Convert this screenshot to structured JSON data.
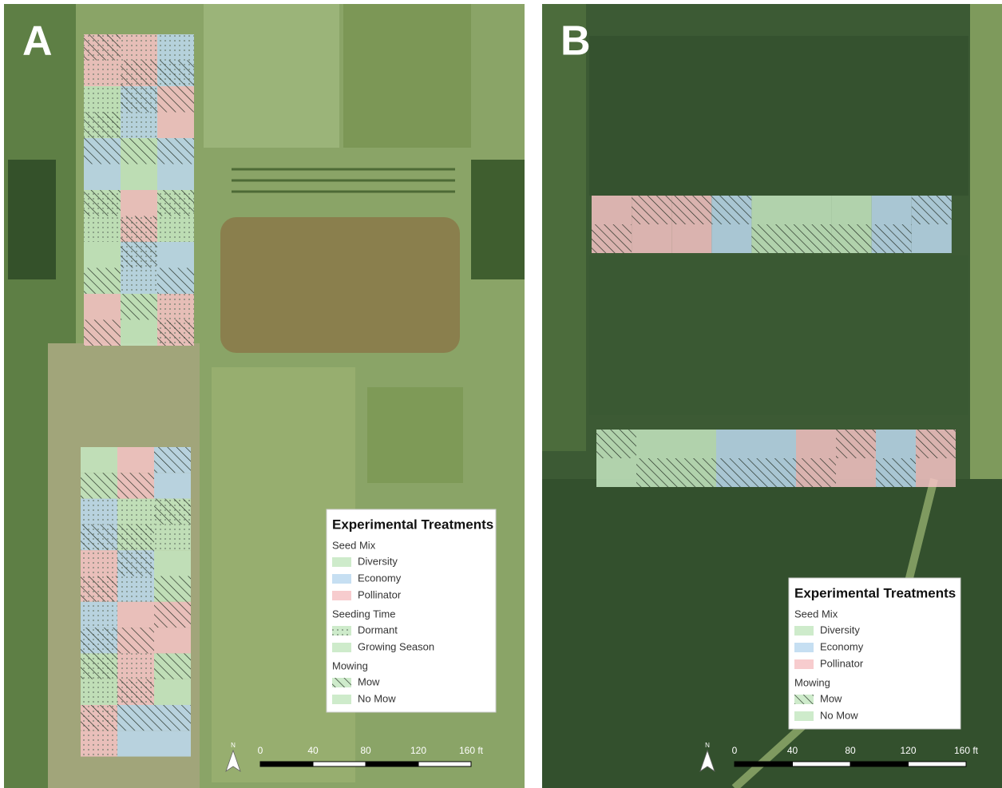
{
  "panels": [
    {
      "label": "A",
      "north": "N",
      "scale": [
        "0",
        "40",
        "80",
        "120",
        "160 ft"
      ],
      "legend": {
        "title": "Experimental Treatments",
        "groups": [
          {
            "title": "Seed Mix",
            "items": [
              "Diversity",
              "Economy",
              "Pollinator"
            ]
          },
          {
            "title": "Seeding Time",
            "items": [
              "Dormant",
              "Growing Season"
            ]
          },
          {
            "title": "Mowing",
            "items": [
              "Mow",
              "No Mow"
            ]
          }
        ]
      }
    },
    {
      "label": "B",
      "north": "N",
      "scale": [
        "0",
        "40",
        "80",
        "120",
        "160 ft"
      ],
      "legend": {
        "title": "Experimental Treatments",
        "groups": [
          {
            "title": "Seed Mix",
            "items": [
              "Diversity",
              "Economy",
              "Pollinator"
            ]
          },
          {
            "title": "Mowing",
            "items": [
              "Mow",
              "No Mow"
            ]
          }
        ]
      }
    }
  ]
}
